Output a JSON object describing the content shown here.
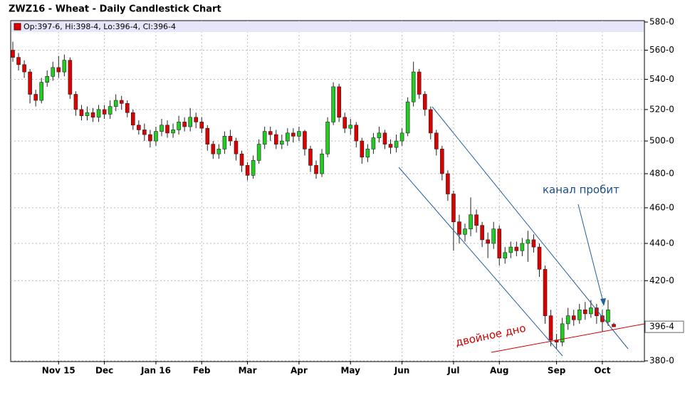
{
  "chart_data": {
    "type": "candlestick",
    "title": "ZWZ16 - Wheat - Daily Candlestick Chart",
    "legend_text": "Op:397-6, Hi:398-4, Lo:396-4, Cl:396-4",
    "annotations": [
      "канал пробит",
      "двойное дно"
    ],
    "last_price": {
      "value": 396.5,
      "label": "396-4"
    },
    "log_scale": true,
    "grid": true,
    "up_color": "#22cc22",
    "down_color": "#dd0000",
    "ylim": [
      380,
      580
    ],
    "yticks": [
      {
        "value": 380,
        "label": "380-0"
      },
      {
        "value": 420,
        "label": "420-0"
      },
      {
        "value": 440,
        "label": "440-0"
      },
      {
        "value": 460,
        "label": "460-0"
      },
      {
        "value": 480,
        "label": "480-0"
      },
      {
        "value": 500,
        "label": "500-0"
      },
      {
        "value": 520,
        "label": "520-0"
      },
      {
        "value": 540,
        "label": "540-0"
      },
      {
        "value": 560,
        "label": "560-0"
      },
      {
        "value": 580,
        "label": "580-0"
      }
    ],
    "categories": [
      null,
      null,
      null,
      null,
      null,
      null,
      null,
      null,
      "Nov 15",
      null,
      null,
      null,
      null,
      null,
      null,
      null,
      "Dec",
      null,
      null,
      null,
      null,
      null,
      null,
      null,
      null,
      "Jan 16",
      null,
      null,
      null,
      null,
      null,
      null,
      null,
      "Feb",
      null,
      null,
      null,
      null,
      null,
      null,
      null,
      "Mar",
      null,
      null,
      null,
      null,
      null,
      null,
      null,
      null,
      "Apr",
      null,
      null,
      null,
      null,
      null,
      null,
      null,
      null,
      "May",
      null,
      null,
      null,
      null,
      null,
      null,
      null,
      null,
      "Jun",
      null,
      null,
      null,
      null,
      null,
      null,
      null,
      null,
      "Jul",
      null,
      null,
      null,
      null,
      null,
      null,
      null,
      "Aug",
      null,
      null,
      null,
      null,
      null,
      null,
      null,
      null,
      null,
      "Sep",
      null,
      null,
      null,
      null,
      null,
      null,
      null,
      "Oct",
      null,
      null
    ],
    "open": [
      560,
      555,
      550,
      545,
      530,
      526,
      538,
      542,
      548,
      545,
      553,
      530,
      520,
      516,
      518,
      515,
      520,
      517,
      522,
      526,
      524,
      518,
      510,
      507,
      504,
      500,
      506,
      510,
      505,
      507,
      512,
      509,
      515,
      512,
      508,
      498,
      492,
      495,
      503,
      500,
      492,
      485,
      479,
      488,
      498,
      506,
      504,
      498,
      500,
      505,
      503,
      506,
      495,
      485,
      480,
      492,
      512,
      535,
      515,
      508,
      510,
      500,
      490,
      495,
      502,
      505,
      498,
      496,
      500,
      505,
      525,
      545,
      530,
      520,
      505,
      495,
      480,
      468,
      452,
      445,
      448,
      456,
      450,
      442,
      440,
      448,
      432,
      435,
      438,
      436,
      440,
      442,
      438,
      426,
      402,
      390,
      389,
      398,
      402,
      400,
      405,
      403,
      406,
      402,
      399,
      397.75
    ],
    "high": [
      566,
      558,
      553,
      547,
      533,
      541,
      546,
      552,
      556,
      557,
      555,
      532,
      523,
      522,
      521,
      523,
      523,
      526,
      530,
      529,
      526,
      520,
      513,
      511,
      507,
      509,
      514,
      513,
      511,
      516,
      515,
      521,
      518,
      515,
      510,
      500,
      498,
      506,
      507,
      502,
      494,
      487,
      491,
      501,
      509,
      509,
      507,
      504,
      508,
      508,
      509,
      507,
      497,
      488,
      495,
      515,
      538,
      537,
      518,
      514,
      512,
      502,
      498,
      505,
      509,
      507,
      501,
      504,
      508,
      528,
      552,
      547,
      532,
      522,
      507,
      497,
      482,
      470,
      456,
      451,
      466,
      459,
      452,
      446,
      452,
      450,
      438,
      441,
      441,
      443,
      447,
      445,
      440,
      428,
      405,
      393,
      401,
      406,
      405,
      408,
      409,
      410,
      408,
      405,
      410,
      398.5
    ],
    "low": [
      552,
      546,
      541,
      524,
      522,
      524,
      535,
      539,
      541,
      542,
      527,
      516,
      513,
      513,
      512,
      512,
      514,
      514,
      519,
      520,
      515,
      507,
      504,
      500,
      496,
      497,
      503,
      502,
      502,
      504,
      506,
      506,
      508,
      505,
      494,
      489,
      489,
      492,
      497,
      488,
      481,
      476,
      477,
      486,
      495,
      500,
      495,
      495,
      497,
      499,
      500,
      491,
      481,
      477,
      478,
      490,
      510,
      512,
      505,
      504,
      496,
      486,
      487,
      492,
      499,
      495,
      492,
      493,
      497,
      503,
      522,
      527,
      516,
      501,
      491,
      476,
      464,
      436,
      440,
      441,
      444,
      446,
      438,
      432,
      437,
      428,
      429,
      432,
      433,
      433,
      430,
      435,
      422,
      398,
      387,
      386,
      387,
      395,
      397,
      398,
      400,
      401,
      398,
      394,
      397,
      396.5
    ],
    "close": [
      555,
      550,
      545,
      530,
      526,
      538,
      542,
      548,
      545,
      553,
      530,
      520,
      516,
      518,
      515,
      520,
      517,
      522,
      526,
      524,
      518,
      510,
      507,
      504,
      500,
      506,
      510,
      505,
      507,
      512,
      509,
      515,
      512,
      508,
      498,
      492,
      495,
      503,
      500,
      492,
      485,
      479,
      488,
      498,
      506,
      504,
      498,
      500,
      505,
      503,
      506,
      495,
      485,
      480,
      492,
      512,
      535,
      515,
      508,
      510,
      500,
      490,
      495,
      502,
      505,
      498,
      496,
      500,
      505,
      525,
      545,
      530,
      520,
      505,
      495,
      480,
      468,
      452,
      445,
      448,
      456,
      450,
      442,
      440,
      448,
      432,
      435,
      438,
      436,
      440,
      442,
      438,
      426,
      402,
      390,
      389,
      398,
      402,
      400,
      405,
      403,
      406,
      402,
      399,
      405,
      396.5
    ]
  }
}
